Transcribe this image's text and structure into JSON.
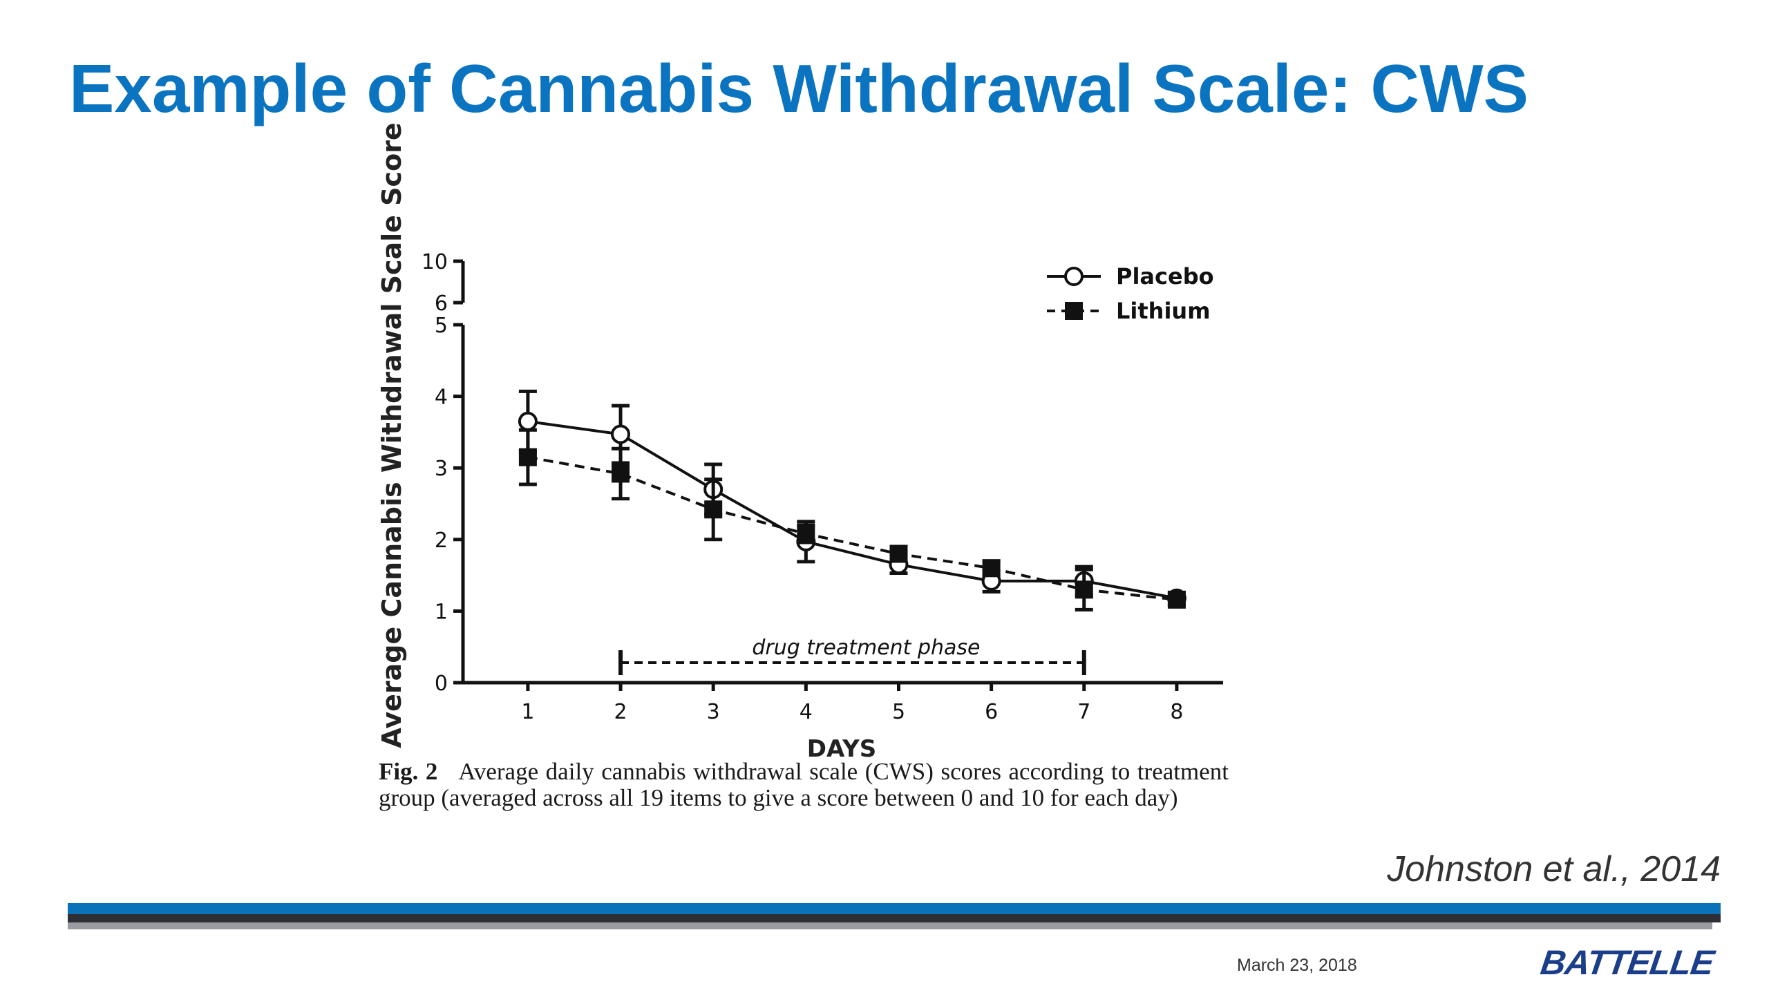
{
  "slide": {
    "title": "Example of Cannabis Withdrawal Scale: CWS",
    "citation": "Johnston et al., 2014",
    "date": "March 23, 2018",
    "logo": "BATTELLE",
    "title_color": "#0b74c0"
  },
  "figure": {
    "caption_label": "Fig. 2",
    "caption_text": "Average daily cannabis withdrawal scale (CWS) scores according to treatment group (averaged across all 19 items to give a score between 0 and 10 for each day)"
  },
  "chart_data": {
    "type": "line",
    "title": "",
    "xlabel": "DAYS",
    "ylabel": "Average Cannabis Withdrawal Scale Score",
    "x": [
      1,
      2,
      3,
      4,
      5,
      6,
      7,
      8
    ],
    "ylim": [
      0,
      5
    ],
    "y_ticks": [
      0,
      1,
      2,
      3,
      4,
      5
    ],
    "y_break_ticks": [
      6,
      10
    ],
    "grid": false,
    "legend_position": "top-right",
    "series": [
      {
        "name": "Placebo",
        "marker": "open-circle",
        "line": "solid",
        "values": [
          3.65,
          3.47,
          2.7,
          1.97,
          1.65,
          1.42,
          1.42,
          1.18
        ],
        "error": [
          0.42,
          0.4,
          0.35,
          0.28,
          0.12,
          0.15,
          0.2,
          0.08
        ]
      },
      {
        "name": "Lithium",
        "marker": "filled-square",
        "line": "dashed",
        "values": [
          3.15,
          2.92,
          2.42,
          2.08,
          1.8,
          1.6,
          1.3,
          1.16
        ],
        "error": [
          0.38,
          0.35,
          0.42,
          0.12,
          0.1,
          0.1,
          0.28,
          0.08
        ]
      }
    ],
    "annotations": [
      {
        "text": "drug treatment phase",
        "x_start": 2,
        "x_end": 7,
        "y": 0.28
      }
    ]
  }
}
